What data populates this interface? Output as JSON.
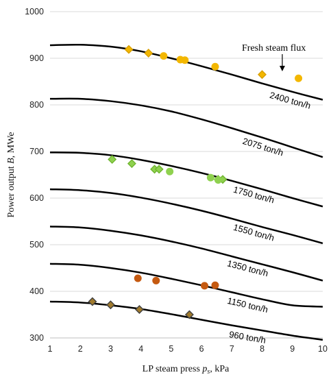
{
  "chart_data": {
    "type": "line",
    "xlabel_main": "LP steam press ",
    "xlabel_var": "p",
    "xlabel_sub": "s",
    "xlabel_unit": ", kPa",
    "ylabel_main": "Power output ",
    "ylabel_var": "B",
    "ylabel_unit": ", MWe",
    "xlim": [
      1,
      10
    ],
    "ylim": [
      300,
      1000
    ],
    "xticks": [
      1,
      2,
      3,
      4,
      5,
      6,
      7,
      8,
      9,
      10
    ],
    "yticks": [
      300,
      400,
      500,
      600,
      700,
      800,
      900,
      1000
    ],
    "grid": "horizontal",
    "annotation": "Fresh steam flux",
    "series": [
      {
        "name": "2400 ton/h",
        "x": [
          1,
          2,
          3,
          4,
          5,
          6,
          7,
          8,
          9,
          10
        ],
        "values": [
          928,
          929,
          925,
          915,
          900,
          883,
          865,
          846,
          828,
          811
        ]
      },
      {
        "name": "2075 ton/h",
        "x": [
          1,
          2,
          3,
          4,
          5,
          6,
          7,
          8,
          9,
          10
        ],
        "values": [
          813,
          813,
          808,
          799,
          786,
          769,
          750,
          730,
          709,
          688
        ]
      },
      {
        "name": "1750 ton/h",
        "x": [
          1,
          2,
          3,
          4,
          5,
          6,
          7,
          8,
          9,
          10
        ],
        "values": [
          698,
          697,
          692,
          682,
          669,
          654,
          637,
          619,
          600,
          582
        ]
      },
      {
        "name": "1550 ton/h",
        "x": [
          1,
          2,
          3,
          4,
          5,
          6,
          7,
          8,
          9,
          10
        ],
        "values": [
          619,
          617,
          611,
          601,
          588,
          573,
          556,
          538,
          521,
          503
        ]
      },
      {
        "name": "1350 ton/h",
        "x": [
          1,
          2,
          3,
          4,
          5,
          6,
          7,
          8,
          9,
          10
        ],
        "values": [
          539,
          537,
          530,
          520,
          507,
          492,
          475,
          458,
          441,
          423
        ]
      },
      {
        "name": "1150 ton/h",
        "x": [
          1,
          2,
          3,
          4,
          5,
          6,
          7,
          8,
          9,
          10
        ],
        "values": [
          459,
          457,
          450,
          440,
          427,
          413,
          398,
          383,
          370,
          367
        ]
      },
      {
        "name": "960 ton/h",
        "x": [
          1,
          2,
          3,
          4,
          5,
          6,
          7,
          8,
          9,
          10
        ],
        "values": [
          378,
          376,
          370,
          362,
          351,
          339,
          327,
          316,
          305,
          296
        ]
      }
    ],
    "markers": [
      {
        "shape": "diamond",
        "color": "#f3b700",
        "points": [
          [
            3.6,
            919
          ],
          [
            4.25,
            911
          ],
          [
            8.0,
            865
          ]
        ]
      },
      {
        "shape": "circle",
        "color": "#f3b700",
        "points": [
          [
            4.75,
            905
          ],
          [
            5.3,
            897
          ],
          [
            5.45,
            896
          ],
          [
            6.45,
            882
          ],
          [
            9.2,
            857
          ]
        ]
      },
      {
        "shape": "diamond",
        "color": "#8fd14f",
        "points": [
          [
            3.05,
            683
          ],
          [
            3.7,
            674
          ],
          [
            4.45,
            662
          ],
          [
            4.6,
            662
          ],
          [
            6.55,
            640
          ],
          [
            6.7,
            640
          ]
        ]
      },
      {
        "shape": "circle",
        "color": "#8fd14f",
        "points": [
          [
            4.95,
            657
          ],
          [
            6.3,
            644
          ],
          [
            6.55,
            639
          ]
        ]
      },
      {
        "shape": "circle",
        "color": "#c55a11",
        "points": [
          [
            3.9,
            428
          ],
          [
            4.5,
            423
          ],
          [
            6.1,
            412
          ],
          [
            6.45,
            413
          ]
        ]
      },
      {
        "shape": "diamond",
        "color": "#a07a2c",
        "points": [
          [
            2.4,
            378
          ],
          [
            3.0,
            371
          ],
          [
            3.95,
            361
          ],
          [
            5.6,
            350
          ]
        ]
      }
    ]
  }
}
